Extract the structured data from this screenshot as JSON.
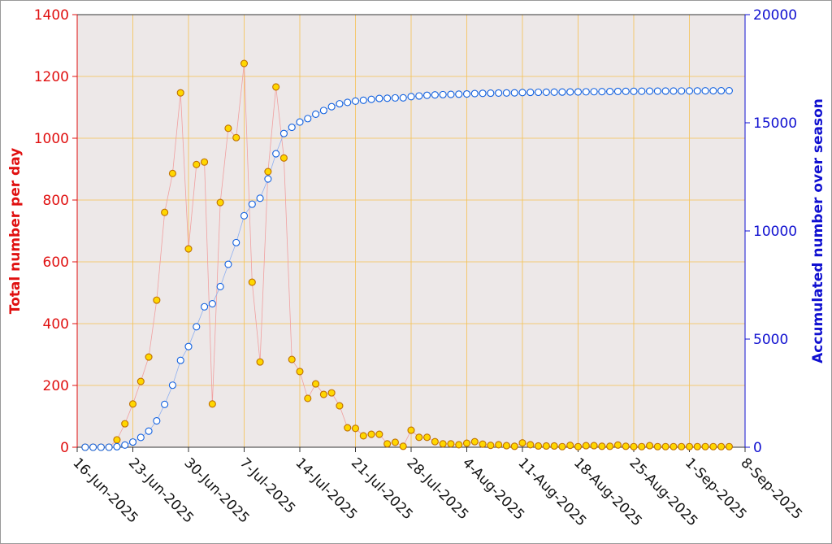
{
  "chart_data": {
    "type": "line",
    "x": [
      "2025-06-17",
      "2025-06-18",
      "2025-06-19",
      "2025-06-20",
      "2025-06-21",
      "2025-06-22",
      "2025-06-23",
      "2025-06-24",
      "2025-06-25",
      "2025-06-26",
      "2025-06-27",
      "2025-06-28",
      "2025-06-29",
      "2025-06-30",
      "2025-07-01",
      "2025-07-02",
      "2025-07-03",
      "2025-07-04",
      "2025-07-05",
      "2025-07-06",
      "2025-07-07",
      "2025-07-08",
      "2025-07-09",
      "2025-07-10",
      "2025-07-11",
      "2025-07-12",
      "2025-07-13",
      "2025-07-14",
      "2025-07-15",
      "2025-07-16",
      "2025-07-17",
      "2025-07-18",
      "2025-07-19",
      "2025-07-20",
      "2025-07-21",
      "2025-07-22",
      "2025-07-23",
      "2025-07-24",
      "2025-07-25",
      "2025-07-26",
      "2025-07-27",
      "2025-07-28",
      "2025-07-29",
      "2025-07-30",
      "2025-07-31",
      "2025-08-01",
      "2025-08-02",
      "2025-08-03",
      "2025-08-04",
      "2025-08-05",
      "2025-08-06",
      "2025-08-07",
      "2025-08-08",
      "2025-08-09",
      "2025-08-10",
      "2025-08-11",
      "2025-08-12",
      "2025-08-13",
      "2025-08-14",
      "2025-08-15",
      "2025-08-16",
      "2025-08-17",
      "2025-08-18",
      "2025-08-19",
      "2025-08-20",
      "2025-08-21",
      "2025-08-22",
      "2025-08-23",
      "2025-08-24",
      "2025-08-25",
      "2025-08-26",
      "2025-08-27",
      "2025-08-28",
      "2025-08-29",
      "2025-08-30",
      "2025-08-31",
      "2025-09-01",
      "2025-09-02",
      "2025-09-03",
      "2025-09-04",
      "2025-09-05",
      "2025-09-06"
    ],
    "series": [
      {
        "name": "Total number per day",
        "color": "#ffd700",
        "values": [
          0,
          0,
          0,
          0,
          24,
          76,
          140,
          213,
          292,
          476,
          760,
          886,
          1147,
          642,
          915,
          923,
          140,
          792,
          1032,
          1002,
          1242,
          534,
          276,
          892,
          1166,
          936,
          284,
          245,
          158,
          205,
          171,
          176,
          134,
          63,
          61,
          37,
          42,
          42,
          11,
          16,
          3,
          55,
          32,
          32,
          18,
          11,
          11,
          8,
          13,
          18,
          10,
          6,
          8,
          5,
          3,
          14,
          8,
          4,
          4,
          4,
          2,
          6,
          2,
          5,
          5,
          3,
          3,
          7,
          3,
          2,
          2,
          5,
          2,
          2,
          2,
          2,
          2,
          2,
          2,
          2,
          2,
          2
        ]
      },
      {
        "name": "Accumulated number over season",
        "color": "#1060e0",
        "axis": "y2",
        "values": [
          0,
          0,
          0,
          0,
          24,
          100,
          240,
          453,
          745,
          1221,
          1981,
          2867,
          4014,
          4656,
          5571,
          6494,
          6634,
          7426,
          8458,
          9460,
          10702,
          11236,
          11512,
          12404,
          13570,
          14506,
          14790,
          15035,
          15193,
          15398,
          15569,
          15745,
          15879,
          15942,
          16003,
          16040,
          16082,
          16124,
          16135,
          16151,
          16154,
          16209,
          16241,
          16273,
          16291,
          16302,
          16313,
          16321,
          16334,
          16352,
          16362,
          16368,
          16376,
          16381,
          16384,
          16398,
          16406,
          16410,
          16414,
          16418,
          16420,
          16426,
          16428,
          16433,
          16438,
          16441,
          16444,
          16451,
          16454,
          16456,
          16458,
          16463,
          16465,
          16467,
          16469,
          16471,
          16473,
          16475,
          16477,
          16479,
          16481,
          16483
        ]
      }
    ],
    "ylabel": "Total number per day",
    "y2label": "Accumulated number over season",
    "xlim": [
      "2025-06-16",
      "2025-09-08"
    ],
    "xticks": [
      {
        "value": "2025-06-16",
        "label": "16-Jun-2025"
      },
      {
        "value": "2025-06-23",
        "label": "23-Jun-2025"
      },
      {
        "value": "2025-06-30",
        "label": "30-Jun-2025"
      },
      {
        "value": "2025-07-07",
        "label": "7-Jul-2025"
      },
      {
        "value": "2025-07-14",
        "label": "14-Jul-2025"
      },
      {
        "value": "2025-07-21",
        "label": "21-Jul-2025"
      },
      {
        "value": "2025-07-28",
        "label": "28-Jul-2025"
      },
      {
        "value": "2025-08-04",
        "label": "4-Aug-2025"
      },
      {
        "value": "2025-08-11",
        "label": "11-Aug-2025"
      },
      {
        "value": "2025-08-18",
        "label": "18-Aug-2025"
      },
      {
        "value": "2025-08-25",
        "label": "25-Aug-2025"
      },
      {
        "value": "2025-09-01",
        "label": "1-Sep-2025"
      },
      {
        "value": "2025-09-08",
        "label": "8-Sep-2025"
      }
    ],
    "ylim": [
      0,
      1400
    ],
    "yticks": [
      0,
      200,
      400,
      600,
      800,
      1000,
      1200,
      1400
    ],
    "y2lim": [
      0,
      20000
    ],
    "y2ticks": [
      0,
      5000,
      10000,
      15000,
      20000
    ],
    "grid": true
  }
}
